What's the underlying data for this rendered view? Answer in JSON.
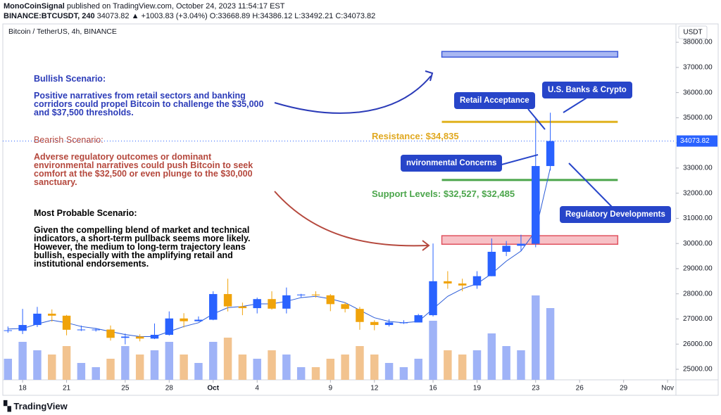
{
  "header": {
    "line1_author": "MonoCoinSignal",
    "line1_rest": "published on TradingView.com, October 24, 2023 11:54:17 EST",
    "symbol": "BINANCE:BTCUSDT, 240",
    "quote": "34073.82 ▲ +1003.83 (+3.04%)",
    "ohlc": "O:33668.89 H:34386.12 L:33492.21 C:34073.82"
  },
  "footer": "TradingView",
  "chart_data": {
    "type": "candlestick",
    "title": "Bitcoin / TetherUS, 4h, BINANCE",
    "currency": "USDT",
    "up_color": "#2962ff",
    "down_color": "#f0a30a",
    "volume_up_color": "#9fb3f7",
    "volume_down_color": "#f2c38f",
    "ma_color": "#2a5bd7",
    "last_price": {
      "value": 34073.82,
      "label": "34073.82"
    },
    "x": [
      -1,
      0,
      1,
      2,
      3,
      4,
      5,
      6,
      7,
      8,
      9,
      10,
      11,
      12,
      13,
      14,
      15,
      16,
      17,
      18,
      19,
      20,
      21,
      22,
      23,
      24,
      25,
      26,
      27,
      28,
      29,
      30,
      31,
      32,
      33,
      34,
      35,
      36
    ],
    "open": [
      26550,
      26530,
      26760,
      27210,
      27130,
      26570,
      26580,
      26580,
      26250,
      26300,
      26220,
      26370,
      27020,
      26910,
      26970,
      27990,
      27500,
      27430,
      27790,
      27410,
      27940,
      27970,
      27940,
      27590,
      27400,
      26880,
      26760,
      26860,
      26860,
      27150,
      28500,
      28410,
      28330,
      28700,
      29670,
      29910,
      29990,
      33080
    ],
    "high": [
      26700,
      27400,
      27480,
      27380,
      27160,
      26740,
      26640,
      26740,
      26420,
      26390,
      26820,
      27300,
      27230,
      27100,
      28100,
      28600,
      27650,
      27850,
      28100,
      28250,
      28000,
      28100,
      27990,
      27660,
      27480,
      26950,
      26990,
      26950,
      27200,
      30000,
      28900,
      28600,
      28900,
      30200,
      30100,
      30350,
      35000,
      35200
    ],
    "low": [
      26450,
      26400,
      26680,
      26890,
      26350,
      26520,
      26500,
      26140,
      25990,
      26110,
      26200,
      26340,
      26660,
      26900,
      26950,
      27300,
      27150,
      27220,
      27370,
      27220,
      27860,
      27850,
      27310,
      27260,
      26570,
      26550,
      26700,
      26800,
      26960,
      27100,
      28200,
      28100,
      28200,
      28700,
      29500,
      29700,
      29850,
      32900
    ],
    "close": [
      26550,
      26760,
      27210,
      27130,
      26570,
      26580,
      26580,
      26250,
      26300,
      26220,
      26370,
      27020,
      26910,
      26970,
      27990,
      27500,
      27430,
      27790,
      27410,
      27940,
      27970,
      27940,
      27590,
      27400,
      26880,
      26760,
      26860,
      26860,
      27150,
      28500,
      28410,
      28330,
      28700,
      29670,
      29910,
      29990,
      33080,
      34073.82
    ],
    "volume": [
      25,
      45,
      35,
      30,
      40,
      20,
      15,
      25,
      40,
      30,
      35,
      45,
      30,
      20,
      45,
      50,
      30,
      25,
      35,
      30,
      15,
      15,
      25,
      30,
      40,
      30,
      20,
      15,
      25,
      70,
      35,
      30,
      35,
      55,
      40,
      35,
      100,
      85
    ],
    "ma": [
      26600,
      26620,
      26800,
      26950,
      26850,
      26700,
      26620,
      26500,
      26380,
      26300,
      26300,
      26500,
      26700,
      26850,
      27200,
      27450,
      27500,
      27600,
      27600,
      27700,
      27850,
      27900,
      27800,
      27650,
      27350,
      27050,
      26900,
      26850,
      26900,
      27400,
      27900,
      28200,
      28400,
      28800,
      29300,
      29700,
      30500,
      33000
    ],
    "xlim": [
      -1.35,
      44.57
    ],
    "xticks": [
      {
        "value": 0,
        "label": "18"
      },
      {
        "value": 3,
        "label": "21"
      },
      {
        "value": 7,
        "label": "25"
      },
      {
        "value": 10,
        "label": "28"
      },
      {
        "value": 13,
        "label": "Oct"
      },
      {
        "value": 16,
        "label": "4"
      },
      {
        "value": 21,
        "label": "9"
      },
      {
        "value": 24,
        "label": "12"
      },
      {
        "value": 28,
        "label": "16"
      },
      {
        "value": 31,
        "label": "19"
      },
      {
        "value": 35,
        "label": "23"
      },
      {
        "value": 38,
        "label": "26"
      },
      {
        "value": 41,
        "label": "29"
      },
      {
        "value": 44,
        "label": "Nov"
      }
    ],
    "ylim": [
      24580,
      38730
    ],
    "yticks": [
      {
        "value": 25000,
        "label": "25000.00"
      },
      {
        "value": 26000,
        "label": "26000.00"
      },
      {
        "value": 27000,
        "label": "27000.00"
      },
      {
        "value": 28000,
        "label": "28000.00"
      },
      {
        "value": 29000,
        "label": "29000.00"
      },
      {
        "value": 30000,
        "label": "30000.00"
      },
      {
        "value": 31000,
        "label": "31000.00"
      },
      {
        "value": 32000,
        "label": "32000.00"
      },
      {
        "value": 33000,
        "label": "33000.00"
      },
      {
        "value": 34000,
        "label": "34000.00"
      },
      {
        "value": 35000,
        "label": "35000.00"
      },
      {
        "value": 36000,
        "label": "36000.00"
      },
      {
        "value": 37000,
        "label": "37000.00"
      },
      {
        "value": 38000,
        "label": "38000.00"
      }
    ],
    "zones": [
      {
        "x0": 28.6,
        "x1": 40.6,
        "low": 37410,
        "high": 37635,
        "fill": "#a9b8f2",
        "stroke": "#3d5bd9"
      },
      {
        "x0": 28.6,
        "x1": 40.6,
        "low": 29970,
        "high": 30310,
        "fill": "#f7c1c6",
        "stroke": "#e0525f"
      }
    ],
    "levels": [
      {
        "x0": 28.6,
        "x1": 40.6,
        "value": 34835,
        "color": "#e0b21f",
        "label": "Resistance: $34,835"
      },
      {
        "x0": 28.6,
        "x1": 40.6,
        "value": 32527,
        "color": "#4ca64c",
        "label": "Support Levels: $32,527, $32,485"
      }
    ]
  },
  "annotations": {
    "bullish_title": "Bullish Scenario:",
    "bullish_lines": [
      "Positive narratives from retail sectors and banking",
      "corridors could propel Bitcoin to challenge the $35,000",
      "and $37,500 thresholds."
    ],
    "bearish_title": "Bearish Scenario:",
    "bearish_lines": [
      "Adverse regulatory outcomes or dominant",
      "environmental narratives could push Bitcoin to seek",
      "comfort at the $32,500 or even plunge to the $30,000",
      "sanctuary."
    ],
    "probable_title": "Most Probable Scenario:",
    "probable_lines": [
      "Given the compelling blend of market and technical",
      "indicators, a short-term pullback seems more likely.",
      "However, the medium to long-term trajectory leans",
      "bullish, especially with the amplifying retail and",
      "institutional endorsements."
    ],
    "callouts": [
      "Retail Acceptance",
      "U.S. Banks & Crypto",
      "nvironmental Concerns",
      "Regulatory Developments"
    ]
  }
}
